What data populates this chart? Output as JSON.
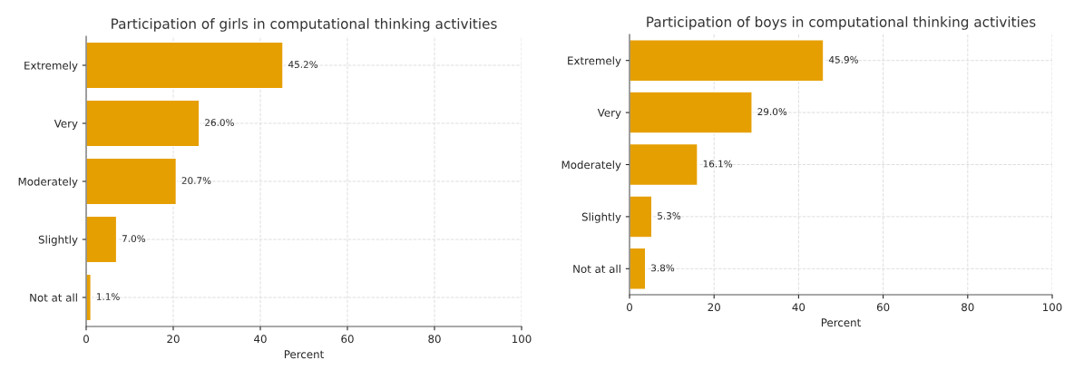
{
  "chart_data": [
    {
      "type": "bar",
      "orientation": "horizontal",
      "title": "Participation of girls in computational thinking activities",
      "xlabel": "Percent",
      "categories": [
        "Extremely",
        "Very",
        "Moderately",
        "Slightly",
        "Not at all"
      ],
      "values": [
        45.2,
        26.0,
        20.7,
        7.0,
        1.1
      ],
      "value_labels": [
        "45.2%",
        "26.0%",
        "20.7%",
        "7.0%",
        "1.1%"
      ],
      "color": "#e69f00",
      "xlim": [
        0,
        100
      ],
      "xticks": [
        0,
        20,
        40,
        60,
        80,
        100
      ],
      "grid": true
    },
    {
      "type": "bar",
      "orientation": "horizontal",
      "title": "Participation of boys in computational thinking activities",
      "xlabel": "Percent",
      "categories": [
        "Extremely",
        "Very",
        "Moderately",
        "Slightly",
        "Not at all"
      ],
      "values": [
        45.9,
        29.0,
        16.1,
        5.3,
        3.8
      ],
      "value_labels": [
        "45.9%",
        "29.0%",
        "16.1%",
        "5.3%",
        "3.8%"
      ],
      "color": "#e69f00",
      "xlim": [
        0,
        100
      ],
      "xticks": [
        0,
        20,
        40,
        60,
        80,
        100
      ],
      "grid": true
    }
  ]
}
